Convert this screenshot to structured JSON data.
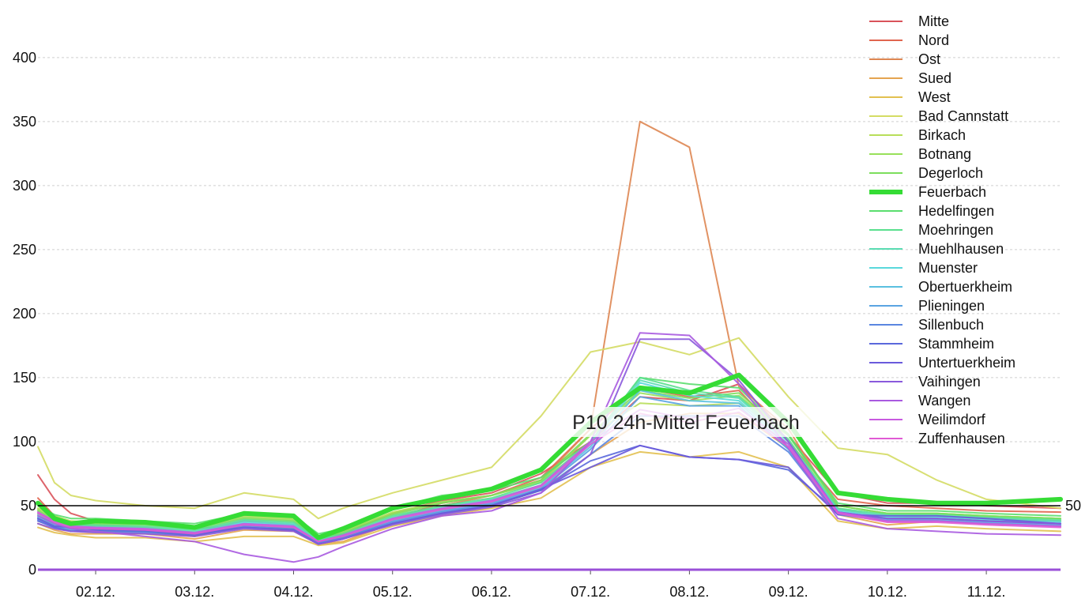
{
  "chart_data": {
    "type": "line",
    "title": "",
    "xlabel": "",
    "ylabel": "",
    "ylim": [
      0,
      440
    ],
    "y_ticks": [
      0,
      50,
      100,
      150,
      200,
      250,
      300,
      350,
      400
    ],
    "x_range": [
      "2018-12-01T10:00",
      "2018-12-11T18:00"
    ],
    "x_ticks": [
      {
        "x": "2018-12-02T00:00",
        "label": "02.12."
      },
      {
        "x": "2018-12-03T00:00",
        "label": "03.12."
      },
      {
        "x": "2018-12-04T00:00",
        "label": "04.12."
      },
      {
        "x": "2018-12-05T00:00",
        "label": "05.12."
      },
      {
        "x": "2018-12-06T00:00",
        "label": "06.12."
      },
      {
        "x": "2018-12-07T00:00",
        "label": "07.12."
      },
      {
        "x": "2018-12-08T00:00",
        "label": "08.12."
      },
      {
        "x": "2018-12-09T00:00",
        "label": "09.12."
      },
      {
        "x": "2018-12-10T00:00",
        "label": "10.12."
      },
      {
        "x": "2018-12-11T00:00",
        "label": "11.12."
      }
    ],
    "grid": "horizontal-dashed",
    "legend": "top-right",
    "reference_line": {
      "value": 50,
      "label": "50"
    },
    "annotation": "P10 24h-Mittel Feuerbach",
    "highlighted_series": "Feuerbach",
    "x": [
      "2018-12-01T10:00",
      "2018-12-01T14:00",
      "2018-12-01T18:00",
      "2018-12-02T00:00",
      "2018-12-02T12:00",
      "2018-12-03T00:00",
      "2018-12-03T12:00",
      "2018-12-04T00:00",
      "2018-12-04T06:00",
      "2018-12-04T12:00",
      "2018-12-05T00:00",
      "2018-12-05T12:00",
      "2018-12-06T00:00",
      "2018-12-06T12:00",
      "2018-12-07T00:00",
      "2018-12-07T12:00",
      "2018-12-08T00:00",
      "2018-12-08T12:00",
      "2018-12-09T00:00",
      "2018-12-09T12:00",
      "2018-12-10T00:00",
      "2018-12-10T12:00",
      "2018-12-11T00:00",
      "2018-12-11T18:00"
    ],
    "series": [
      {
        "name": "Mitte",
        "color": "#d9525a",
        "values": [
          74,
          55,
          44,
          38,
          36,
          32,
          35,
          33,
          25,
          28,
          44,
          54,
          60,
          75,
          100,
          135,
          132,
          145,
          105,
          60,
          52,
          52,
          50,
          48
        ]
      },
      {
        "name": "Nord",
        "color": "#e0654f",
        "values": [
          56,
          42,
          35,
          34,
          33,
          29,
          38,
          35,
          24,
          26,
          40,
          52,
          58,
          72,
          110,
          142,
          135,
          140,
          100,
          55,
          50,
          48,
          46,
          45
        ]
      },
      {
        "name": "Ost",
        "color": "#de8652",
        "values": [
          40,
          35,
          30,
          30,
          30,
          26,
          35,
          32,
          20,
          25,
          40,
          50,
          58,
          70,
          110,
          350,
          330,
          143,
          110,
          48,
          40,
          42,
          40,
          38
        ]
      },
      {
        "name": "Sued",
        "color": "#e5a450",
        "values": [
          36,
          31,
          28,
          28,
          28,
          24,
          31,
          30,
          20,
          22,
          36,
          44,
          50,
          62,
          90,
          115,
          122,
          122,
          95,
          43,
          35,
          38,
          36,
          34
        ]
      },
      {
        "name": "West",
        "color": "#e2c050",
        "values": [
          33,
          29,
          27,
          25,
          25,
          22,
          26,
          26,
          19,
          21,
          34,
          42,
          48,
          56,
          80,
          92,
          88,
          92,
          80,
          38,
          32,
          34,
          32,
          30
        ]
      },
      {
        "name": "Bad Cannstatt",
        "color": "#d4dc64",
        "values": [
          96,
          68,
          58,
          54,
          50,
          48,
          60,
          55,
          40,
          48,
          60,
          70,
          80,
          120,
          170,
          178,
          168,
          181,
          135,
          95,
          90,
          70,
          55,
          48
        ]
      },
      {
        "name": "Birkach",
        "color": "#b8de5a",
        "values": [
          48,
          42,
          38,
          37,
          37,
          34,
          42,
          40,
          26,
          30,
          45,
          53,
          58,
          68,
          105,
          130,
          128,
          130,
          105,
          50,
          44,
          44,
          42,
          40
        ]
      },
      {
        "name": "Botnang",
        "color": "#98e05a",
        "values": [
          47,
          40,
          37,
          36,
          36,
          33,
          41,
          39,
          25,
          30,
          44,
          53,
          58,
          69,
          105,
          138,
          132,
          136,
          105,
          50,
          44,
          44,
          42,
          40
        ]
      },
      {
        "name": "Degerloch",
        "color": "#7cde5c",
        "values": [
          46,
          39,
          36,
          35,
          35,
          32,
          40,
          38,
          24,
          29,
          43,
          52,
          58,
          70,
          106,
          140,
          134,
          138,
          106,
          50,
          44,
          44,
          42,
          40
        ]
      },
      {
        "name": "Feuerbach",
        "color": "#35dc35",
        "values": [
          52,
          40,
          36,
          38,
          37,
          33,
          44,
          42,
          25,
          32,
          48,
          56,
          63,
          78,
          115,
          142,
          138,
          152,
          115,
          60,
          55,
          52,
          52,
          55
        ]
      },
      {
        "name": "Hedelfingen",
        "color": "#5ade6e",
        "values": [
          50,
          43,
          40,
          40,
          38,
          36,
          44,
          42,
          28,
          32,
          48,
          58,
          62,
          72,
          100,
          150,
          145,
          142,
          105,
          52,
          46,
          46,
          44,
          42
        ]
      },
      {
        "name": "Moehringen",
        "color": "#5ae08e",
        "values": [
          44,
          38,
          35,
          35,
          34,
          31,
          39,
          37,
          24,
          28,
          42,
          50,
          56,
          68,
          100,
          150,
          140,
          135,
          102,
          48,
          43,
          43,
          41,
          39
        ]
      },
      {
        "name": "Muehlhausen",
        "color": "#5adcb2",
        "values": [
          43,
          37,
          34,
          34,
          33,
          30,
          38,
          36,
          23,
          27,
          41,
          49,
          55,
          66,
          100,
          148,
          138,
          134,
          100,
          47,
          42,
          42,
          40,
          38
        ]
      },
      {
        "name": "Muenster",
        "color": "#5ad8dc",
        "values": [
          42,
          36,
          33,
          33,
          32,
          29,
          37,
          35,
          22,
          26,
          40,
          48,
          54,
          65,
          98,
          146,
          136,
          132,
          98,
          46,
          41,
          41,
          39,
          37
        ]
      },
      {
        "name": "Obertuerkheim",
        "color": "#5ac0e0",
        "values": [
          41,
          35,
          32,
          32,
          31,
          28,
          36,
          34,
          22,
          26,
          39,
          47,
          53,
          64,
          96,
          140,
          132,
          130,
          96,
          45,
          40,
          40,
          38,
          36
        ]
      },
      {
        "name": "Plieningen",
        "color": "#5aa4e2",
        "values": [
          40,
          34,
          31,
          31,
          30,
          28,
          35,
          33,
          21,
          25,
          38,
          46,
          52,
          63,
          94,
          135,
          128,
          128,
          94,
          44,
          39,
          39,
          37,
          35
        ]
      },
      {
        "name": "Sillenbuch",
        "color": "#5a86e0",
        "values": [
          39,
          33,
          30,
          30,
          29,
          27,
          34,
          32,
          21,
          25,
          37,
          45,
          51,
          62,
          90,
          120,
          120,
          120,
          92,
          43,
          38,
          38,
          36,
          34
        ]
      },
      {
        "name": "Stammheim",
        "color": "#5a68dc",
        "values": [
          38,
          33,
          30,
          31,
          30,
          27,
          33,
          31,
          20,
          24,
          36,
          44,
          50,
          62,
          85,
          97,
          88,
          86,
          78,
          45,
          40,
          40,
          38,
          36
        ]
      },
      {
        "name": "Untertuerkheim",
        "color": "#6a5adc",
        "values": [
          40,
          34,
          33,
          32,
          31,
          28,
          33,
          31,
          20,
          24,
          36,
          44,
          50,
          63,
          80,
          97,
          88,
          86,
          80,
          43,
          42,
          42,
          40,
          36
        ]
      },
      {
        "name": "Vaihingen",
        "color": "#8a5adc",
        "values": [
          36,
          32,
          30,
          29,
          28,
          26,
          32,
          30,
          20,
          24,
          35,
          43,
          49,
          60,
          90,
          180,
          180,
          148,
          100,
          45,
          40,
          40,
          38,
          36
        ]
      },
      {
        "name": "Wangen",
        "color": "#a95ae0",
        "values": [
          42,
          36,
          32,
          30,
          26,
          22,
          12,
          6,
          10,
          18,
          32,
          42,
          46,
          60,
          100,
          185,
          183,
          145,
          95,
          40,
          32,
          30,
          28,
          27
        ]
      },
      {
        "name": "Weilimdorf",
        "color": "#c85ae0",
        "values": [
          45,
          38,
          34,
          33,
          32,
          29,
          36,
          34,
          22,
          27,
          40,
          48,
          54,
          66,
          100,
          125,
          118,
          126,
          98,
          45,
          38,
          38,
          36,
          34
        ]
      },
      {
        "name": "Zuffenhausen",
        "color": "#e05ad4",
        "values": [
          44,
          37,
          33,
          32,
          31,
          28,
          35,
          33,
          22,
          26,
          39,
          47,
          53,
          65,
          98,
          122,
          115,
          123,
          96,
          44,
          37,
          37,
          35,
          33
        ]
      }
    ]
  }
}
